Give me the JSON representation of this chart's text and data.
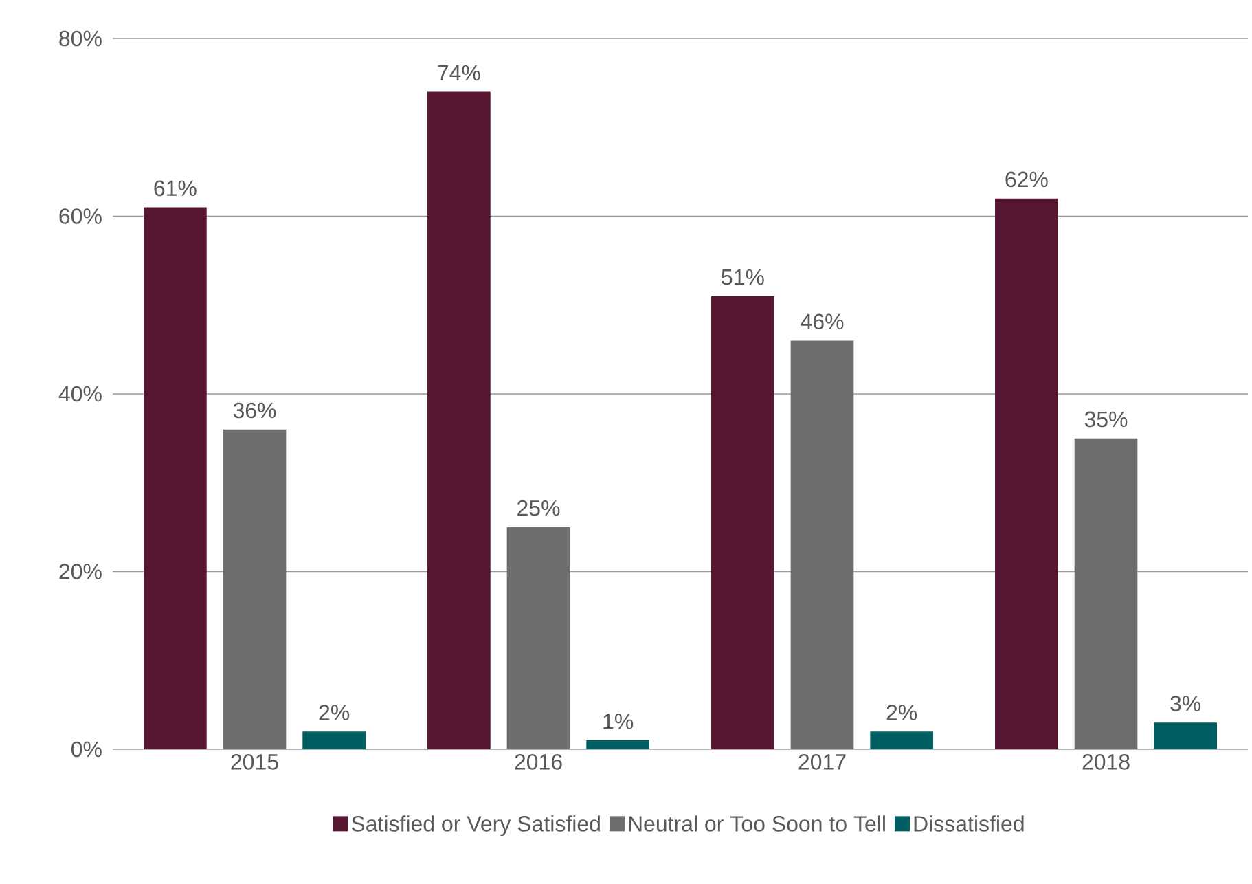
{
  "chart_data": {
    "type": "bar",
    "categories": [
      "2015",
      "2016",
      "2017",
      "2018"
    ],
    "series": [
      {
        "name": "Satisfied or Very Satisfied",
        "color": "#561530",
        "values": [
          61,
          74,
          51,
          62
        ],
        "value_labels": [
          "61%",
          "74%",
          "51%",
          "62%"
        ]
      },
      {
        "name": "Neutral or Too Soon to Tell",
        "color": "#6d6e70",
        "values": [
          36,
          25,
          46,
          35
        ],
        "value_labels": [
          "36%",
          "25%",
          "46%",
          "35%"
        ]
      },
      {
        "name": "Dissatisfied",
        "color": "#005f63",
        "values": [
          2,
          1,
          2,
          3
        ],
        "value_labels": [
          "2%",
          "1%",
          "2%",
          "3%"
        ]
      }
    ],
    "ylim": [
      0,
      80
    ],
    "yticks": [
      {
        "value": 0,
        "label": "0%"
      },
      {
        "value": 20,
        "label": "20%"
      },
      {
        "value": 40,
        "label": "40%"
      },
      {
        "value": 60,
        "label": "60%"
      },
      {
        "value": 80,
        "label": "80%"
      }
    ],
    "grid": "y",
    "legend": "bottom"
  }
}
